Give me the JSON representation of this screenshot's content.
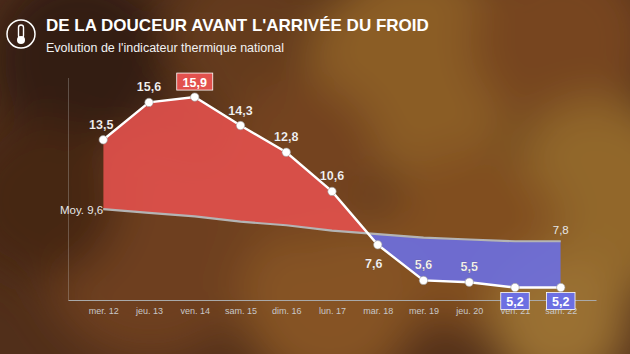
{
  "chart_data": {
    "type": "line",
    "title": "DE LA DOUCEUR AVANT L'ARRIVÉE DU FROID",
    "subtitle": "Evolution de l'indicateur thermique national",
    "categories": [
      "mer. 12",
      "jeu. 13",
      "ven. 14",
      "sam. 15",
      "dim. 16",
      "lun. 17",
      "mar. 18",
      "mer. 19",
      "jeu. 20",
      "ven. 21",
      "sam. 22"
    ],
    "series": [
      {
        "color": "#ffffff",
        "marker": "circle",
        "values": [
          13.5,
          15.6,
          15.9,
          14.3,
          12.8,
          10.6,
          7.6,
          5.6,
          5.5,
          5.2,
          5.2
        ],
        "value_labels": [
          "13,5",
          "15,6",
          "15,9",
          "14,3",
          "12,8",
          "10,6",
          "7,6",
          "5,6",
          "5,5",
          "5,2",
          "5,2"
        ]
      },
      {
        "color": "#b4b4b4",
        "values": [
          9.6,
          9.4,
          9.2,
          8.9,
          8.7,
          8.4,
          8.2,
          8.0,
          7.9,
          7.8,
          7.8
        ],
        "value_labels": [
          "Moy. 9,6",
          null,
          null,
          null,
          null,
          null,
          null,
          null,
          null,
          null,
          "7,8"
        ]
      }
    ],
    "ylim": [
      4.5,
      17
    ],
    "tick_labels": "x",
    "data_labels": true,
    "grid": false
  }
}
